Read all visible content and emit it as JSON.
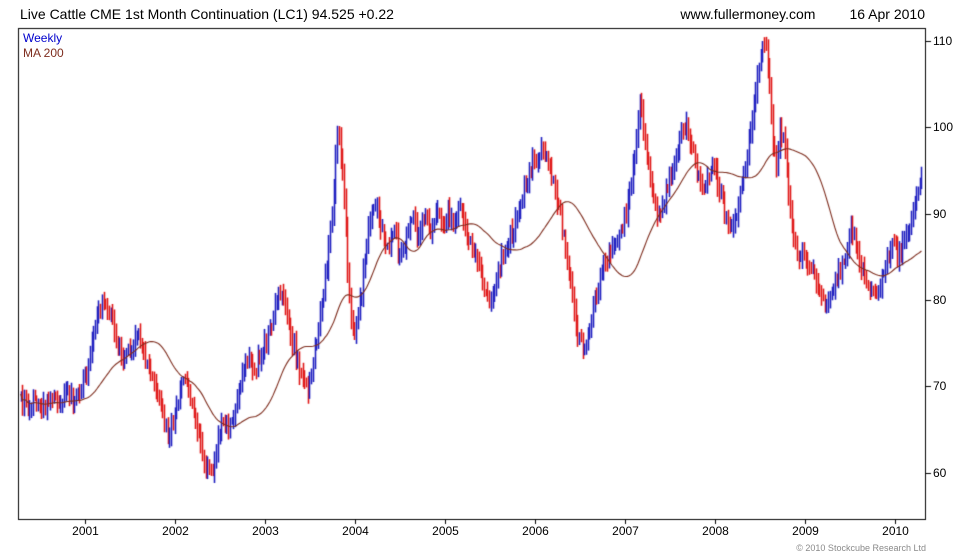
{
  "header": {
    "title": "Live Cattle CME 1st Month Continuation (LC1) 94.525 +0.22",
    "website": "www.fullermoney.com",
    "date": "16 Apr 2010"
  },
  "legend": {
    "weekly_label": "Weekly",
    "ma_label": "MA 200"
  },
  "footer": {
    "copyright": "© 2010 Stockcube Research Ltd"
  },
  "colors": {
    "up_bar": "#2020c0",
    "down_bar": "#e01818",
    "ma_line": "#7e2d1e",
    "axis": "#000000",
    "legend_weekly": "#0000cc",
    "legend_ma": "#7e2d1e"
  },
  "chart_data": {
    "type": "candlestick",
    "title": "Live Cattle CME 1st Month Continuation (LC1)",
    "last_price": 94.525,
    "change": 0.22,
    "timeframe": "Weekly",
    "overlay": "MA 200",
    "legend_position": "top-left",
    "grid": false,
    "xlim": [
      2000.25,
      2010.35
    ],
    "ylim": [
      54.5,
      111.5
    ],
    "y_ticks": [
      60,
      70,
      80,
      90,
      100,
      110
    ],
    "x_ticks": [
      2001,
      2002,
      2003,
      2004,
      2005,
      2006,
      2007,
      2008,
      2009,
      2010
    ],
    "ma_window_weeks": 40,
    "weekly_close_anchors": [
      [
        2000.28,
        68.5
      ],
      [
        2000.35,
        67.5
      ],
      [
        2000.42,
        68.5
      ],
      [
        2000.5,
        67.2
      ],
      [
        2000.58,
        68.0
      ],
      [
        2000.65,
        69.0
      ],
      [
        2000.72,
        68.0
      ],
      [
        2000.8,
        69.5
      ],
      [
        2000.88,
        68.5
      ],
      [
        2000.95,
        70.0
      ],
      [
        2001.02,
        72.0
      ],
      [
        2001.08,
        75.0
      ],
      [
        2001.15,
        78.5
      ],
      [
        2001.21,
        80.0
      ],
      [
        2001.28,
        78.0
      ],
      [
        2001.35,
        75.0
      ],
      [
        2001.42,
        73.5
      ],
      [
        2001.5,
        74.5
      ],
      [
        2001.57,
        76.0
      ],
      [
        2001.64,
        74.0
      ],
      [
        2001.71,
        72.0
      ],
      [
        2001.78,
        70.0
      ],
      [
        2001.85,
        67.0
      ],
      [
        2001.92,
        64.5
      ],
      [
        2001.98,
        66.0
      ],
      [
        2002.05,
        69.5
      ],
      [
        2002.12,
        71.0
      ],
      [
        2002.18,
        68.0
      ],
      [
        2002.25,
        64.5
      ],
      [
        2002.32,
        61.5
      ],
      [
        2002.4,
        60.0
      ],
      [
        2002.47,
        63.5
      ],
      [
        2002.53,
        66.0
      ],
      [
        2002.6,
        65.0
      ],
      [
        2002.68,
        68.0
      ],
      [
        2002.75,
        71.5
      ],
      [
        2002.82,
        73.5
      ],
      [
        2002.88,
        72.0
      ],
      [
        2002.95,
        74.0
      ],
      [
        2003.02,
        75.5
      ],
      [
        2003.08,
        78.0
      ],
      [
        2003.15,
        81.0
      ],
      [
        2003.22,
        79.0
      ],
      [
        2003.28,
        76.0
      ],
      [
        2003.35,
        73.0
      ],
      [
        2003.42,
        70.5
      ],
      [
        2003.47,
        69.5
      ],
      [
        2003.52,
        72.5
      ],
      [
        2003.58,
        76.5
      ],
      [
        2003.64,
        80.0
      ],
      [
        2003.7,
        85.5
      ],
      [
        2003.75,
        91.0
      ],
      [
        2003.8,
        99.5
      ],
      [
        2003.85,
        96.0
      ],
      [
        2003.89,
        89.0
      ],
      [
        2003.93,
        81.0
      ],
      [
        2003.97,
        76.0
      ],
      [
        2004.02,
        77.5
      ],
      [
        2004.07,
        81.0
      ],
      [
        2004.12,
        86.0
      ],
      [
        2004.17,
        89.5
      ],
      [
        2004.23,
        91.0
      ],
      [
        2004.3,
        88.0
      ],
      [
        2004.37,
        86.0
      ],
      [
        2004.43,
        88.5
      ],
      [
        2004.49,
        84.5
      ],
      [
        2004.56,
        87.0
      ],
      [
        2004.63,
        89.5
      ],
      [
        2004.69,
        87.5
      ],
      [
        2004.76,
        90.0
      ],
      [
        2004.83,
        88.0
      ],
      [
        2004.89,
        90.5
      ],
      [
        2004.96,
        89.0
      ],
      [
        2005.03,
        90.0
      ],
      [
        2005.1,
        88.0
      ],
      [
        2005.16,
        90.5
      ],
      [
        2005.23,
        88.5
      ],
      [
        2005.29,
        86.5
      ],
      [
        2005.36,
        84.0
      ],
      [
        2005.43,
        81.0
      ],
      [
        2005.49,
        79.5
      ],
      [
        2005.56,
        82.0
      ],
      [
        2005.62,
        84.5
      ],
      [
        2005.69,
        86.5
      ],
      [
        2005.76,
        88.5
      ],
      [
        2005.82,
        91.0
      ],
      [
        2005.89,
        93.5
      ],
      [
        2005.96,
        95.5
      ],
      [
        2006.03,
        96.5
      ],
      [
        2006.09,
        97.5
      ],
      [
        2006.16,
        95.5
      ],
      [
        2006.22,
        92.5
      ],
      [
        2006.29,
        89.0
      ],
      [
        2006.35,
        85.0
      ],
      [
        2006.42,
        79.5
      ],
      [
        2006.48,
        75.5
      ],
      [
        2006.55,
        74.5
      ],
      [
        2006.62,
        77.5
      ],
      [
        2006.68,
        80.5
      ],
      [
        2006.75,
        83.5
      ],
      [
        2006.82,
        85.5
      ],
      [
        2006.89,
        86.5
      ],
      [
        2006.95,
        88.0
      ],
      [
        2007.02,
        90.5
      ],
      [
        2007.08,
        94.0
      ],
      [
        2007.12,
        98.0
      ],
      [
        2007.16,
        103.0
      ],
      [
        2007.21,
        99.0
      ],
      [
        2007.26,
        95.5
      ],
      [
        2007.31,
        92.0
      ],
      [
        2007.36,
        89.5
      ],
      [
        2007.43,
        91.5
      ],
      [
        2007.49,
        94.0
      ],
      [
        2007.56,
        96.5
      ],
      [
        2007.62,
        99.5
      ],
      [
        2007.68,
        100.5
      ],
      [
        2007.75,
        97.5
      ],
      [
        2007.81,
        94.5
      ],
      [
        2007.86,
        92.5
      ],
      [
        2007.92,
        94.0
      ],
      [
        2007.98,
        95.5
      ],
      [
        2008.05,
        93.0
      ],
      [
        2008.11,
        90.0
      ],
      [
        2008.17,
        87.5
      ],
      [
        2008.24,
        89.5
      ],
      [
        2008.31,
        94.0
      ],
      [
        2008.38,
        98.5
      ],
      [
        2008.44,
        103.5
      ],
      [
        2008.5,
        107.5
      ],
      [
        2008.55,
        110.0
      ],
      [
        2008.6,
        106.0
      ],
      [
        2008.64,
        99.0
      ],
      [
        2008.68,
        95.5
      ],
      [
        2008.72,
        100.0
      ],
      [
        2008.77,
        98.0
      ],
      [
        2008.82,
        92.0
      ],
      [
        2008.87,
        87.0
      ],
      [
        2008.92,
        84.5
      ],
      [
        2008.98,
        86.0
      ],
      [
        2009.05,
        84.0
      ],
      [
        2009.11,
        82.5
      ],
      [
        2009.18,
        80.5
      ],
      [
        2009.25,
        79.5
      ],
      [
        2009.32,
        81.5
      ],
      [
        2009.38,
        83.0
      ],
      [
        2009.45,
        85.5
      ],
      [
        2009.51,
        88.0
      ],
      [
        2009.58,
        86.0
      ],
      [
        2009.65,
        83.0
      ],
      [
        2009.71,
        81.0
      ],
      [
        2009.78,
        80.5
      ],
      [
        2009.85,
        82.5
      ],
      [
        2009.91,
        84.5
      ],
      [
        2009.98,
        86.5
      ],
      [
        2010.04,
        85.0
      ],
      [
        2010.1,
        86.5
      ],
      [
        2010.16,
        88.5
      ],
      [
        2010.21,
        91.0
      ],
      [
        2010.26,
        93.0
      ],
      [
        2010.3,
        94.525
      ]
    ]
  }
}
